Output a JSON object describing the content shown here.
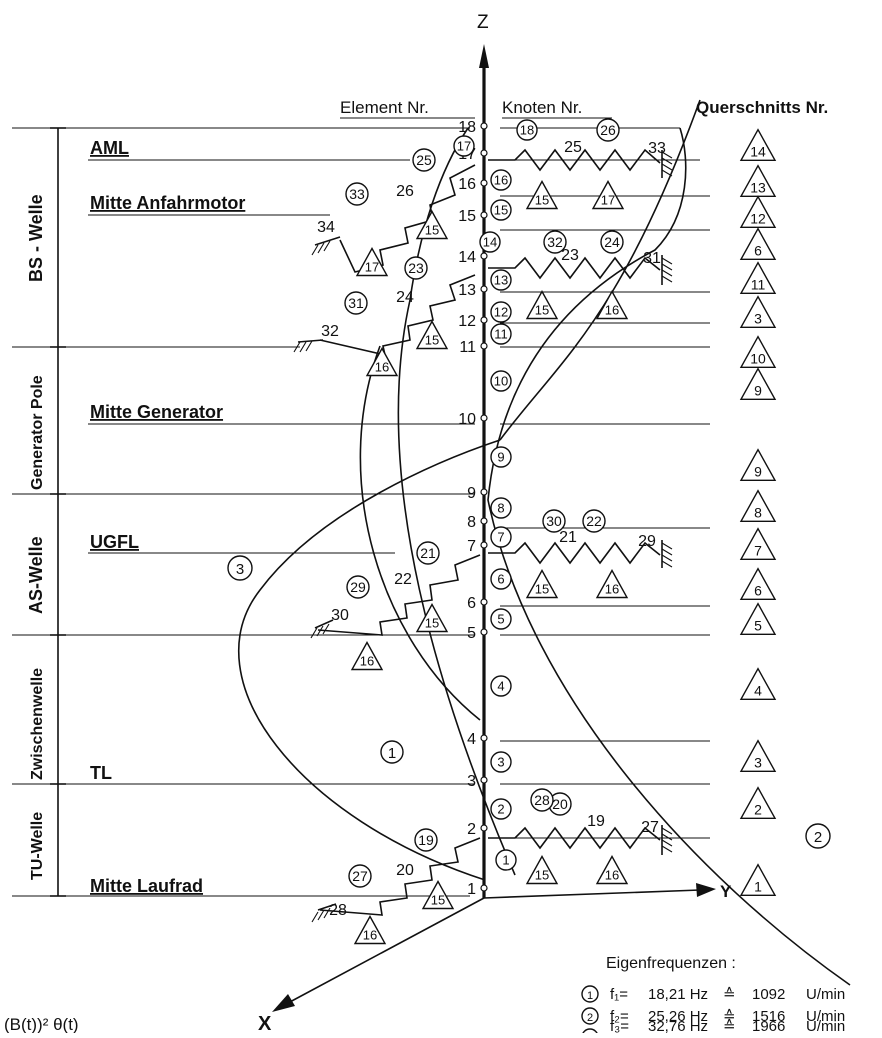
{
  "axes": {
    "z": "Z",
    "y": "Y",
    "x": "X"
  },
  "headers": {
    "element": "Element Nr.",
    "knoten": "Knoten Nr.",
    "querschnitt": "Querschnitts Nr."
  },
  "section_labels": {
    "bs_welle": "BS - Welle",
    "generator_pole": "Generator Pole",
    "as_welle": "AS-Welle",
    "zwischenwelle": "Zwischenwelle",
    "tu_welle": "TU-Welle"
  },
  "level_labels": {
    "aml": "AML",
    "anfahrmotor": "Mitte Anfahrmotor",
    "generator": "Mitte Generator",
    "ugfl": "UGFL",
    "tl": "TL",
    "laufrad": "Mitte Laufrad"
  },
  "nodes": [
    "1",
    "2",
    "3",
    "4",
    "5",
    "6",
    "7",
    "8",
    "9",
    "10",
    "11",
    "12",
    "13",
    "14",
    "15",
    "16",
    "17",
    "18"
  ],
  "shaft_elements": [
    "1",
    "2",
    "3",
    "4",
    "5",
    "6",
    "7",
    "8",
    "9",
    "10",
    "11",
    "12",
    "13",
    "14",
    "15",
    "16",
    "17",
    "18"
  ],
  "spring_nodes": [
    "19",
    "20",
    "21",
    "22",
    "23",
    "24",
    "25",
    "26",
    "27",
    "28",
    "29",
    "30",
    "31",
    "32",
    "33",
    "34"
  ],
  "spring_elements": [
    "19",
    "20",
    "21",
    "22",
    "23",
    "24",
    "25",
    "26",
    "27",
    "28",
    "29",
    "30",
    "31",
    "32",
    "33"
  ],
  "mass_elements": [
    "15",
    "16",
    "17"
  ],
  "cross_sections": [
    "14",
    "13",
    "12",
    "6",
    "11",
    "3",
    "10",
    "9",
    "9",
    "8",
    "7",
    "6",
    "5",
    "4",
    "3",
    "2",
    "1"
  ],
  "modes": [
    "1",
    "2",
    "3"
  ],
  "eigen": {
    "title": "Eigenfrequenzen :",
    "rows": [
      {
        "mode": "1",
        "f": "f₁=",
        "hz": "18,21 Hz",
        "eq": "≙",
        "rpm": "1092",
        "unit": "U/min"
      },
      {
        "mode": "2",
        "f": "f₂=",
        "hz": "25,26 Hz",
        "eq": "≙",
        "rpm": "1516",
        "unit": "U/min"
      },
      {
        "mode": "3",
        "f": "f₃=",
        "hz": "32,76 Hz",
        "eq": "≙",
        "rpm": "1966",
        "unit": "U/min"
      }
    ]
  },
  "formula": "(B(t))² θ(t)"
}
